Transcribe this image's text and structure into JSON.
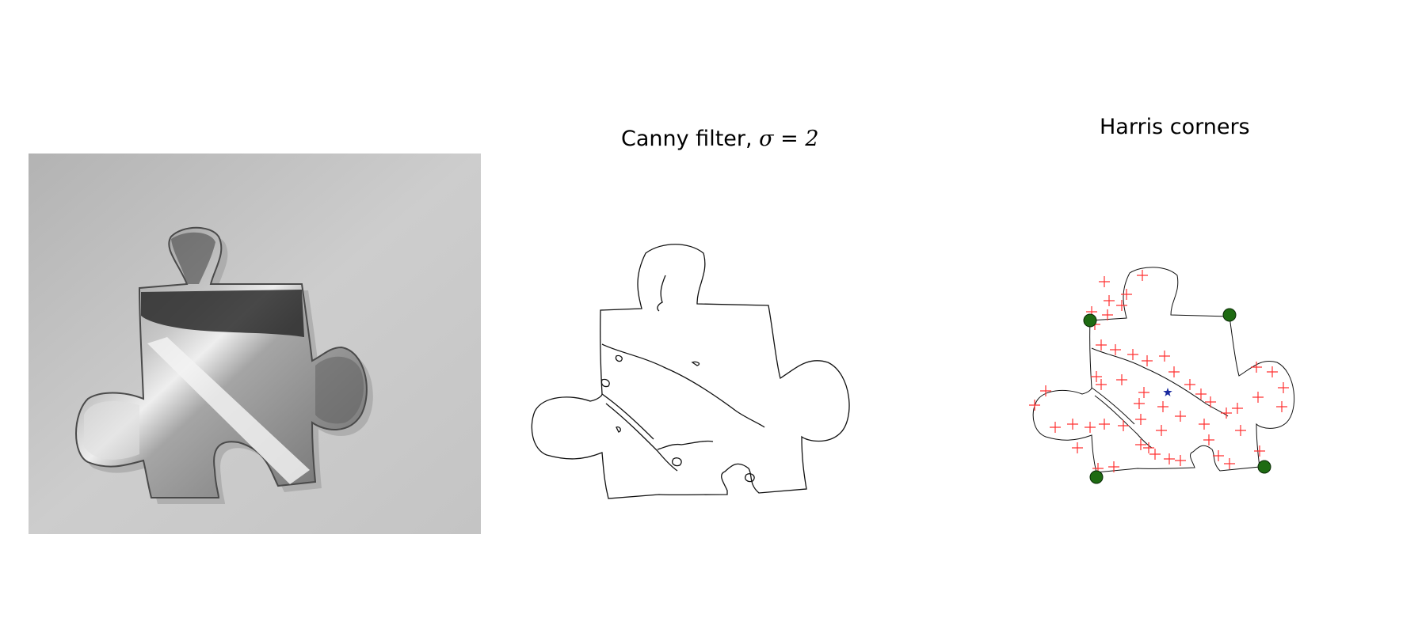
{
  "panels": {
    "photo": {
      "title": ""
    },
    "canny": {
      "title_text": "Canny filter, ",
      "title_symbol": "σ = 2"
    },
    "harris": {
      "title": "Harris corners"
    }
  },
  "markers": {
    "corner_color": "#ff3030",
    "outer_corner_color": "#1e6b12",
    "center_color": "#1a2aa0",
    "edge_color": "#111111"
  }
}
